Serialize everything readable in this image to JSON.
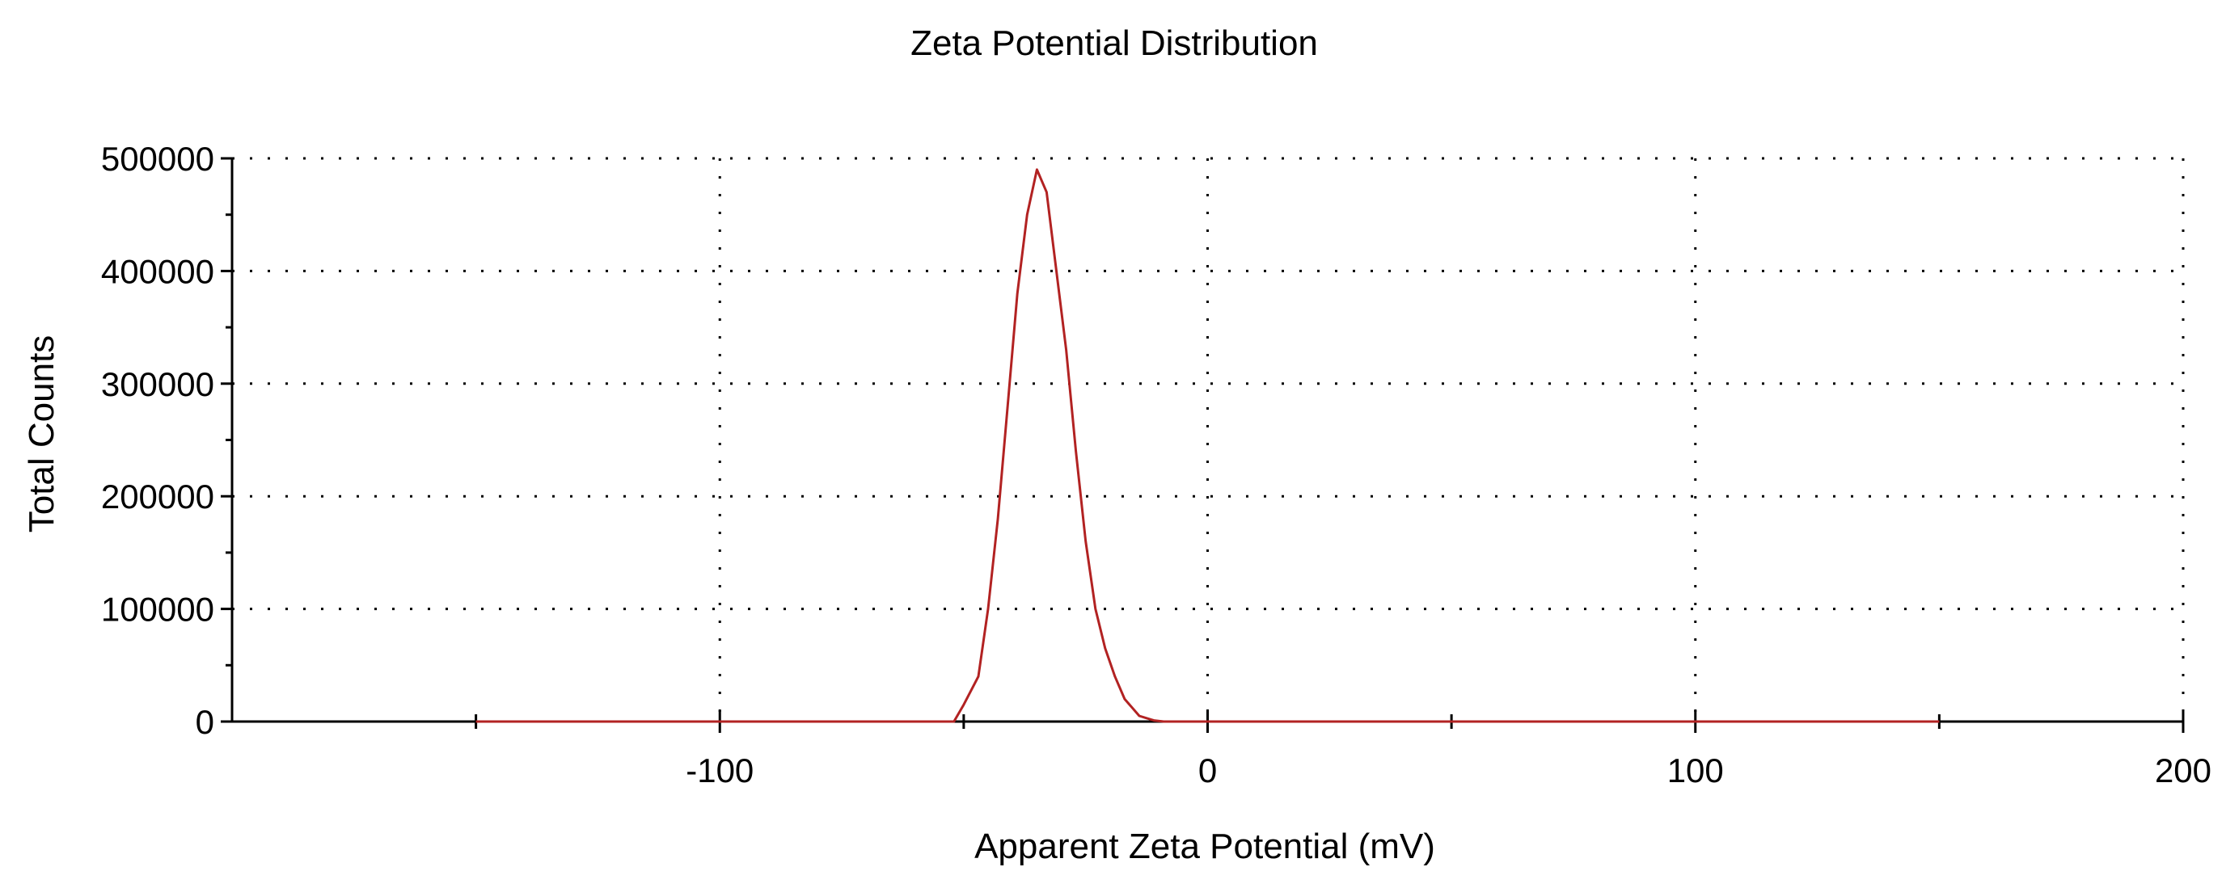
{
  "chart_data": {
    "type": "line",
    "title": "Zeta Potential Distribution",
    "xlabel": "Apparent Zeta Potential (mV)",
    "ylabel": "Total Counts",
    "xlim": [
      -200,
      200
    ],
    "ylim": [
      0,
      500000
    ],
    "x_ticks": [
      -100,
      0,
      100,
      200
    ],
    "x_tick_labels": [
      "-100",
      "0",
      "100",
      "200"
    ],
    "x_minor_ticks": [
      -150,
      -50,
      50,
      150
    ],
    "y_ticks": [
      0,
      100000,
      200000,
      300000,
      400000,
      500000
    ],
    "y_tick_labels": [
      "0",
      "100000",
      "200000",
      "300000",
      "400000",
      "500000"
    ],
    "grid": true,
    "grid_style": "dotted",
    "series": [
      {
        "color": "#b22222",
        "x": [
          -150,
          -100,
          -52,
          -50,
          -47,
          -45,
          -43,
          -41,
          -39,
          -37,
          -35,
          -33,
          -31,
          -29,
          -27,
          -25,
          -23,
          -21,
          -19,
          -17,
          -14,
          -11,
          -9,
          0,
          50,
          100,
          150
        ],
        "y": [
          0,
          0,
          0,
          15000,
          40000,
          100000,
          180000,
          280000,
          380000,
          450000,
          490000,
          470000,
          400000,
          330000,
          240000,
          160000,
          100000,
          65000,
          40000,
          20000,
          5000,
          1000,
          0,
          0,
          0,
          0,
          0
        ]
      }
    ]
  }
}
